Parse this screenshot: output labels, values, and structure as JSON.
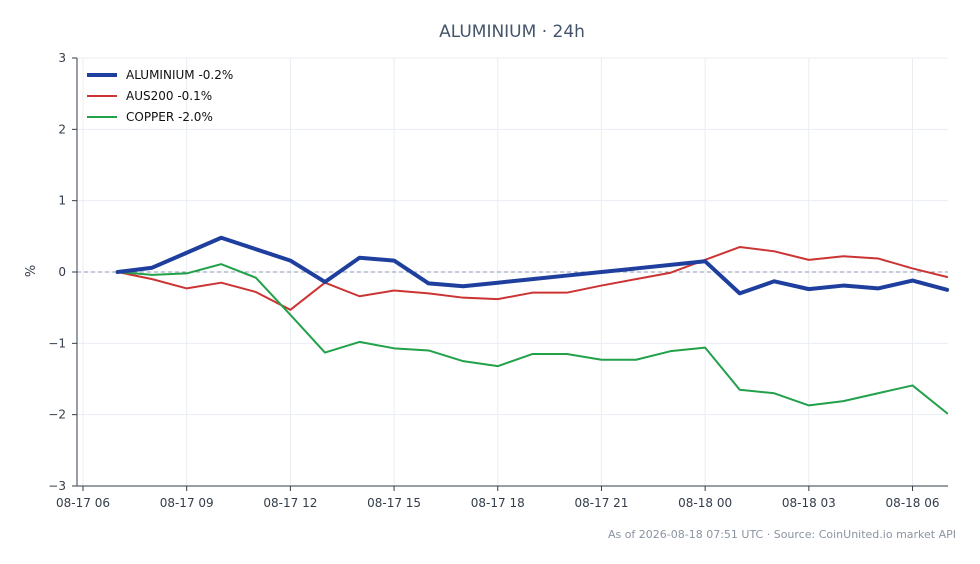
{
  "chart_data": {
    "type": "line",
    "title": "ALUMINIUM · 24h",
    "ylabel": "%",
    "ylim": [
      -3,
      3
    ],
    "yticks": [
      3,
      2,
      1,
      0,
      -1,
      -2,
      -3
    ],
    "ytick_labels": [
      "3",
      "2",
      "1",
      "0",
      "−1",
      "−2",
      "−3"
    ],
    "x_ticks": [
      "08-17 06",
      "08-17 09",
      "08-17 12",
      "08-17 15",
      "08-17 18",
      "08-17 21",
      "08-18 00",
      "08-18 03",
      "08-18 06"
    ],
    "x_start_hour": 6,
    "x_end_hour": 31.2,
    "x_hours": [
      7,
      8,
      9,
      10,
      11,
      12,
      13,
      14,
      15,
      16,
      17,
      18,
      19,
      20,
      21,
      22,
      23,
      24,
      25,
      26,
      27,
      28,
      29,
      30,
      31
    ],
    "zero_line": true,
    "grid": true,
    "legend_position": "top-left",
    "series": [
      {
        "name": "ALUMINIUM -0.2%",
        "color": "#1f3f9e",
        "width": 4,
        "values": [
          0.0,
          0.06,
          0.27,
          0.48,
          0.32,
          0.16,
          -0.14,
          0.2,
          0.16,
          -0.16,
          -0.2,
          -0.15,
          -0.1,
          -0.05,
          0.0,
          0.05,
          0.1,
          0.15,
          -0.3,
          -0.13,
          -0.24,
          -0.19,
          -0.23,
          -0.12,
          -0.25
        ]
      },
      {
        "name": "AUS200 -0.1%",
        "color": "#cc3333",
        "width": 2,
        "values": [
          0.0,
          -0.1,
          -0.23,
          -0.15,
          -0.28,
          -0.53,
          -0.15,
          -0.34,
          -0.26,
          -0.3,
          -0.36,
          -0.38,
          -0.29,
          -0.29,
          -0.19,
          -0.1,
          -0.01,
          0.17,
          0.35,
          0.29,
          0.17,
          0.22,
          0.19,
          0.05,
          -0.07
        ]
      },
      {
        "name": "COPPER -2.0%",
        "color": "#22a14b",
        "width": 2,
        "values": [
          0.0,
          -0.04,
          -0.02,
          0.11,
          -0.08,
          -0.6,
          -1.13,
          -0.98,
          -1.07,
          -1.1,
          -1.25,
          -1.32,
          -1.15,
          -1.15,
          -1.23,
          -1.23,
          -1.11,
          -1.06,
          -1.65,
          -1.7,
          -1.87,
          -1.81,
          -1.7,
          -1.59,
          -1.98
        ]
      }
    ]
  },
  "footer": {
    "text": "As of 2026-08-18 07:51 UTC · Source: CoinUnited.io market API"
  }
}
